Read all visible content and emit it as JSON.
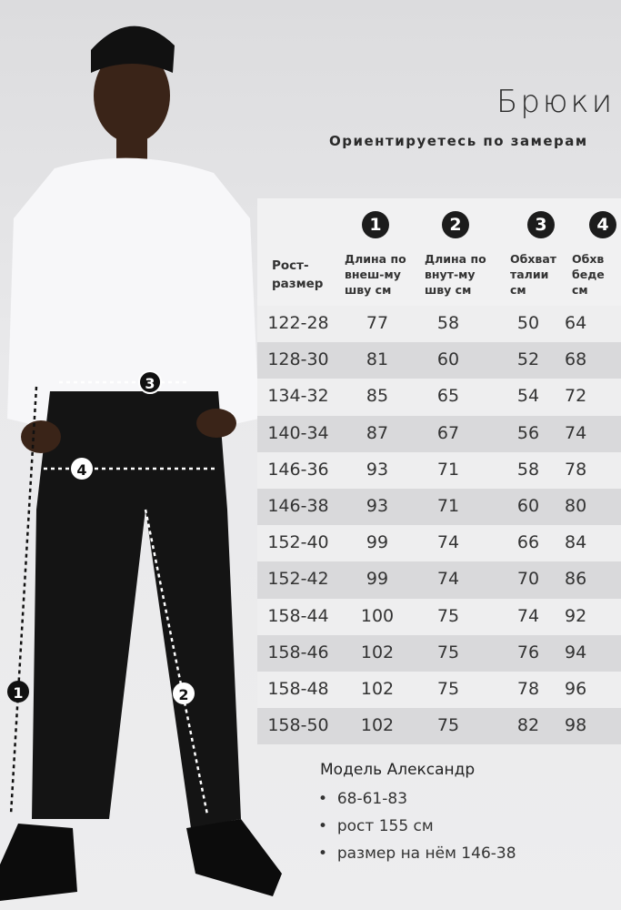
{
  "title": "Брюки",
  "subtitle": "Ориентируетесь по замерам",
  "table": {
    "size_header": "Рост-\nразмер",
    "columns": [
      {
        "number": "1",
        "label": "Длина по\nвнеш-му\nшву см"
      },
      {
        "number": "2",
        "label": "Длина по\nвнут-му\nшву см"
      },
      {
        "number": "3",
        "label": "Обхват\nталии\nсм"
      },
      {
        "number": "4",
        "label": "Обхв\nбеде\nсм"
      }
    ],
    "rows": [
      [
        "122-28",
        "77",
        "58",
        "50",
        "64"
      ],
      [
        "128-30",
        "81",
        "60",
        "52",
        "68"
      ],
      [
        "134-32",
        "85",
        "65",
        "54",
        "72"
      ],
      [
        "140-34",
        "87",
        "67",
        "56",
        "74"
      ],
      [
        "146-36",
        "93",
        "71",
        "58",
        "78"
      ],
      [
        "146-38",
        "93",
        "71",
        "60",
        "80"
      ],
      [
        "152-40",
        "99",
        "74",
        "66",
        "84"
      ],
      [
        "152-42",
        "99",
        "74",
        "70",
        "86"
      ],
      [
        "158-44",
        "100",
        "75",
        "74",
        "92"
      ],
      [
        "158-46",
        "102",
        "75",
        "76",
        "94"
      ],
      [
        "158-48",
        "102",
        "75",
        "78",
        "96"
      ],
      [
        "158-50",
        "102",
        "75",
        "82",
        "98"
      ]
    ]
  },
  "model": {
    "title": "Модель Александр",
    "bullets": [
      "68-61-83",
      "рост 155 см",
      "размер на нём 146-38"
    ]
  },
  "markers": [
    "1",
    "2",
    "3",
    "4"
  ]
}
